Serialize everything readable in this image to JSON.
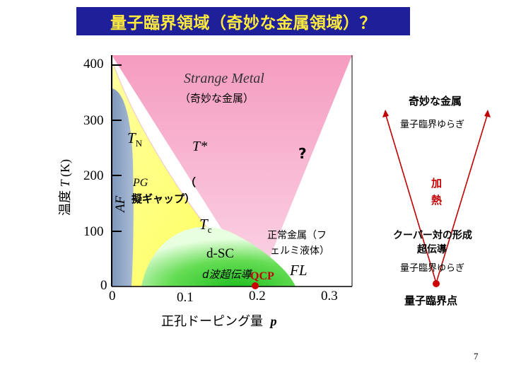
{
  "title": "量子臨界領域（奇妙な金属領域）？",
  "axes": {
    "y_label_jp": "温度",
    "y_label_sym": "T",
    "y_label_unit": "(K)",
    "x_label_jp": "正孔ドーピング量",
    "x_label_sym": "p",
    "y_ticks": [
      "400",
      "300",
      "200",
      "100",
      "0"
    ],
    "x_ticks": [
      "0",
      "0.1",
      "0.2",
      "0.3"
    ]
  },
  "regions": {
    "strange_metal": "Strange Metal",
    "strange_metal_jp": "（奇妙な金属）",
    "tn": "T",
    "tn_sub": "N",
    "tstar": "T*",
    "question": "?",
    "pg": "PG",
    "pg_paren": "（",
    "pseudogap_jp": "擬ギャップ）",
    "af": "AF",
    "tc": "T",
    "tc_sub": "c",
    "normal_metal_1": "正常金属（フ",
    "normal_metal_2": "ェルミ液体）",
    "dsc": "d-SC",
    "dsc_jp": "d波超伝導",
    "qcp": "QCP",
    "fl": "FL"
  },
  "side_diagram": {
    "top_label": "奇妙な金属",
    "fluct_top": "量子臨界ゆらぎ",
    "heating": [
      "加",
      "熱"
    ],
    "cooper_1": "クーパー対の形成",
    "cooper_2": "超伝導",
    "fluct_bottom": "量子臨界ゆらぎ",
    "qcp_label": "量子臨界点"
  },
  "page_number": "7",
  "colors": {
    "title_bg": "#1f1f9a",
    "title_text": "#ffeb3b",
    "strange_metal": "#f7a8c8",
    "pseudogap": "#ffff99",
    "af": "#8fa8c8",
    "sc": "#33cc33",
    "arrow": "#c00000",
    "qcp_dot": "#cc0000"
  }
}
